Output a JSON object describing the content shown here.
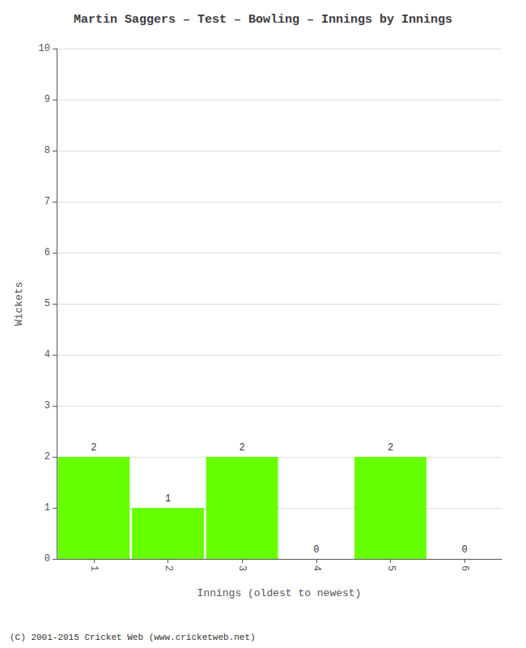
{
  "chart_data": {
    "type": "bar",
    "title": "Martin Saggers – Test – Bowling – Innings by Innings",
    "xlabel": "Innings (oldest to newest)",
    "ylabel": "Wickets",
    "categories": [
      1,
      2,
      3,
      4,
      5,
      6
    ],
    "values": [
      2,
      1,
      2,
      0,
      2,
      0
    ],
    "color": "#66ff00",
    "ylim": [
      0,
      10
    ],
    "yticks": [
      0,
      1,
      2,
      3,
      4,
      5,
      6,
      7,
      8,
      9,
      10
    ],
    "grid": true,
    "data_labels": true,
    "annotations": [
      "(C) 2001-2015 Cricket Web (www.cricketweb.net)"
    ]
  }
}
